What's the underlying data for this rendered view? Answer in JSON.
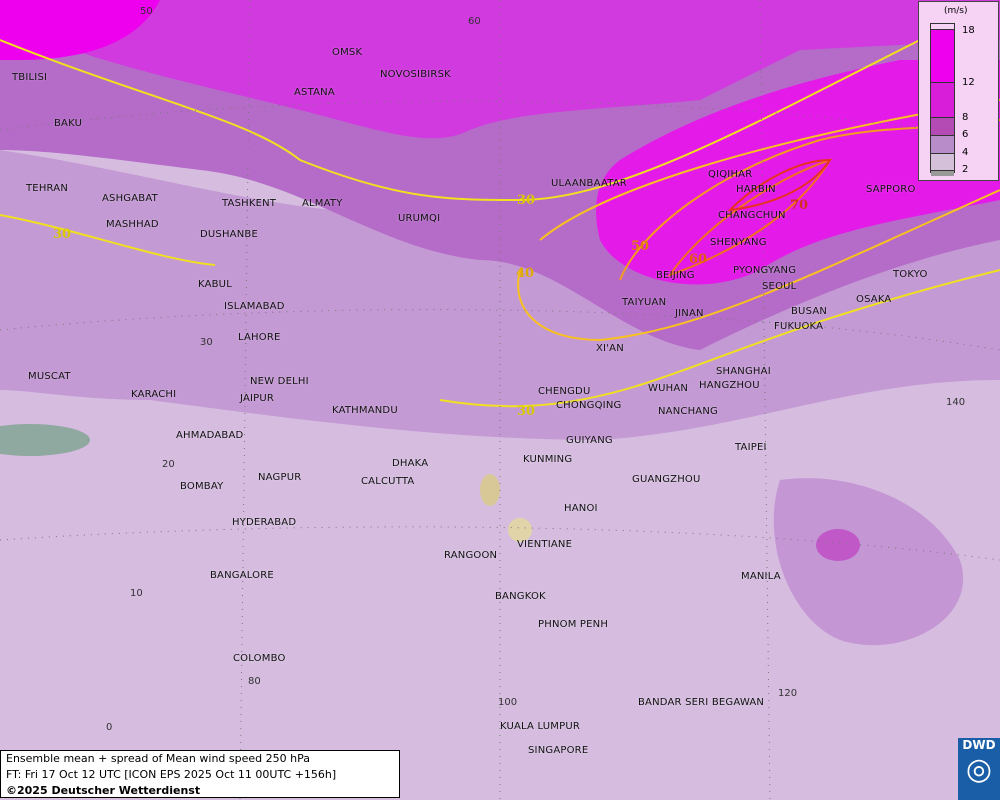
{
  "title": "Ensemble mean + spread of Mean wind speed 250 hPa",
  "forecast_time": "FT: Fri 17 Oct 12 UTC [ICON EPS 2025 Oct 11 00UTC +156h]",
  "copyright": "©2025 Deutscher Wetterdienst",
  "logo": "DWD",
  "legend": {
    "unit": "(m/s)",
    "ticks": [
      "18",
      "12",
      "8",
      "6",
      "4",
      "2"
    ],
    "colors": [
      "#ee00ee",
      "#d81ed8",
      "#b44ab4",
      "#b88cc8",
      "#d4c0d8",
      "#999999"
    ]
  },
  "contour_labels": [
    "30",
    "30",
    "40",
    "50",
    "60",
    "70",
    "30"
  ],
  "grid_labels": [
    "50",
    "60",
    "30",
    "20",
    "10",
    "0",
    "80",
    "100",
    "120",
    "140"
  ],
  "cities": [
    "TBILISI",
    "OMSK",
    "NOVOSIBIRSK",
    "ASTANA",
    "BAKU",
    "TEHRAN",
    "ASHGABAT",
    "MASHHAD",
    "TASHKENT",
    "ALMATY",
    "DUSHANBE",
    "URUMQI",
    "ULAANBAATAR",
    "QIQIHAR",
    "HARBIN",
    "CHANGCHUN",
    "SAPPORO",
    "SHENYANG",
    "BEIJING",
    "PYONGYANG",
    "SEOUL",
    "TOKYO",
    "OSAKA",
    "BUSAN",
    "FUKUOKA",
    "TAIYUAN",
    "JINAN",
    "KABUL",
    "ISLAMABAD",
    "LAHORE",
    "XI'AN",
    "SHANGHAI",
    "HANGZHOU",
    "WUHAN",
    "CHENGDU",
    "CHONGQING",
    "NANCHANG",
    "NEW DELHI",
    "JAIPUR",
    "KATHMANDU",
    "MUSCAT",
    "KARACHI",
    "AHMADABAD",
    "GUIYANG",
    "TAIPEI",
    "KUNMING",
    "NAGPUR",
    "DHAKA",
    "CALCUTTA",
    "GUANGZHOU",
    "BOMBAY",
    "HANOI",
    "HYDERABAD",
    "RANGOON",
    "VIENTIANE",
    "BANGALORE",
    "MANILA",
    "BANGKOK",
    "PHNOM PENH",
    "COLOMBO",
    "BANDAR SERI BEGAWAN",
    "KUALA LUMPUR",
    "SINGAPORE"
  ]
}
